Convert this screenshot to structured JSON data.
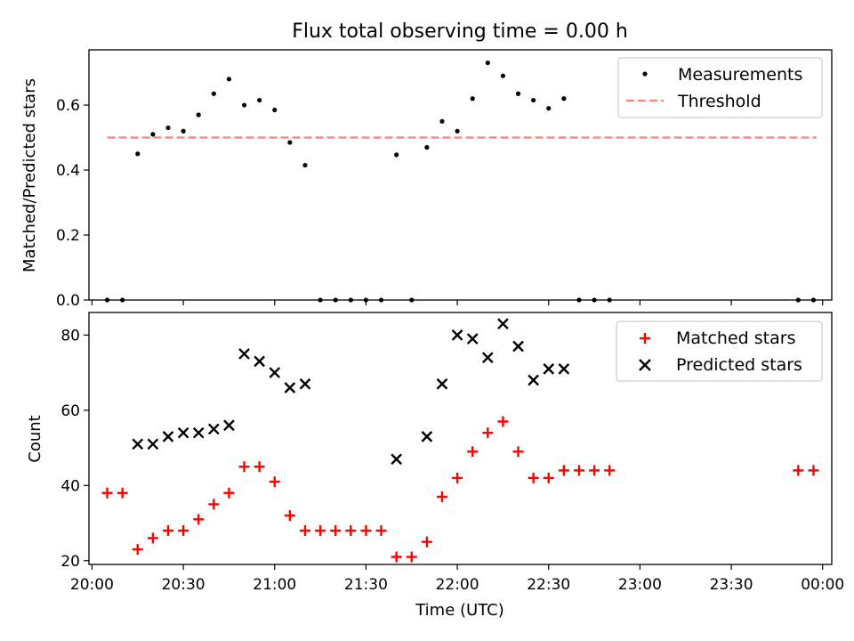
{
  "figure": {
    "title": "Flux total observing time = 0.00 h"
  },
  "chart_data": [
    {
      "type": "scatter",
      "panel": "top",
      "ylabel": "Matched/Predicted stars",
      "xlabel": "",
      "ylim": [
        0,
        0.77
      ],
      "yticks": [
        0.0,
        0.2,
        0.4,
        0.6
      ],
      "ytick_labels": [
        "0.0",
        "0.2",
        "0.4",
        "0.6"
      ],
      "grid": false,
      "legend": {
        "placement": "top-right",
        "entries": [
          {
            "label": "Measurements",
            "marker": "dot",
            "color": "#000000"
          },
          {
            "label": "Threshold",
            "marker": "dashed-line",
            "color": "#ff7f7f"
          }
        ]
      },
      "threshold": {
        "y": 0.5,
        "x_start": "20:05",
        "x_end": "23:58"
      },
      "series": [
        {
          "name": "Measurements",
          "x": [
            "20:05",
            "20:10",
            "20:15",
            "20:20",
            "20:25",
            "20:30",
            "20:35",
            "20:40",
            "20:45",
            "20:50",
            "20:55",
            "21:00",
            "21:05",
            "21:10",
            "21:15",
            "21:20",
            "21:25",
            "21:30",
            "21:35",
            "21:40",
            "21:45",
            "21:50",
            "21:55",
            "22:00",
            "22:05",
            "22:10",
            "22:15",
            "22:20",
            "22:25",
            "22:30",
            "22:35",
            "22:40",
            "22:45",
            "22:50",
            "23:52",
            "23:57"
          ],
          "y": [
            0.0,
            0.0,
            0.45,
            0.51,
            0.53,
            0.52,
            0.57,
            0.635,
            0.68,
            0.6,
            0.615,
            0.585,
            0.485,
            0.415,
            0.0,
            0.0,
            0.0,
            0.0,
            0.0,
            0.447,
            0.0,
            0.47,
            0.55,
            0.52,
            0.62,
            0.73,
            0.69,
            0.635,
            0.615,
            0.59,
            0.62,
            0.0,
            0.0,
            0.0,
            0.0,
            0.0
          ]
        }
      ]
    },
    {
      "type": "scatter",
      "panel": "bottom",
      "ylabel": "Count",
      "xlabel": "Time (UTC)",
      "ylim": [
        19,
        86
      ],
      "yticks": [
        20,
        40,
        60,
        80
      ],
      "ytick_labels": [
        "20",
        "40",
        "60",
        "80"
      ],
      "xticks": [
        "20:00",
        "20:30",
        "21:00",
        "21:30",
        "22:00",
        "22:30",
        "23:00",
        "23:30",
        "00:00"
      ],
      "xlim": [
        "19:59",
        "00:03"
      ],
      "grid": false,
      "legend": {
        "placement": "top-right",
        "entries": [
          {
            "label": "Matched stars",
            "marker": "plus",
            "color": "#ff0000"
          },
          {
            "label": "Predicted stars",
            "marker": "cross",
            "color": "#000000"
          }
        ]
      },
      "series": [
        {
          "name": "Matched stars",
          "x": [
            "20:05",
            "20:10",
            "20:15",
            "20:20",
            "20:25",
            "20:30",
            "20:35",
            "20:40",
            "20:45",
            "20:50",
            "20:55",
            "21:00",
            "21:05",
            "21:10",
            "21:15",
            "21:20",
            "21:25",
            "21:30",
            "21:35",
            "21:40",
            "21:45",
            "21:50",
            "21:55",
            "22:00",
            "22:05",
            "22:10",
            "22:15",
            "22:20",
            "22:25",
            "22:30",
            "22:35",
            "22:40",
            "22:45",
            "22:50",
            "23:52",
            "23:57"
          ],
          "y": [
            38,
            38,
            23,
            26,
            28,
            28,
            31,
            35,
            38,
            45,
            45,
            41,
            32,
            28,
            28,
            28,
            28,
            28,
            28,
            21,
            21,
            25,
            37,
            42,
            49,
            54,
            57,
            49,
            42,
            42,
            44,
            44,
            44,
            44,
            44,
            44
          ]
        },
        {
          "name": "Predicted stars",
          "x": [
            "20:15",
            "20:20",
            "20:25",
            "20:30",
            "20:35",
            "20:40",
            "20:45",
            "20:50",
            "20:55",
            "21:00",
            "21:05",
            "21:10",
            "21:40",
            "21:50",
            "21:55",
            "22:00",
            "22:05",
            "22:10",
            "22:15",
            "22:20",
            "22:25",
            "22:30",
            "22:35"
          ],
          "y": [
            51,
            51,
            53,
            54,
            54,
            55,
            56,
            75,
            73,
            70,
            66,
            67,
            47,
            53,
            67,
            80,
            79,
            74,
            83,
            77,
            68,
            71,
            71
          ]
        }
      ]
    }
  ]
}
